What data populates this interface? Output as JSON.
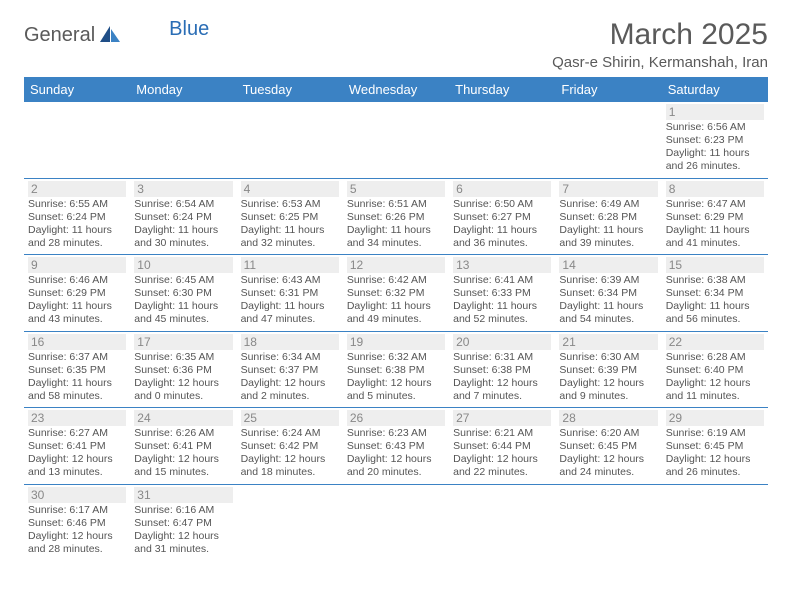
{
  "logo": {
    "text1": "General",
    "text2": "Blue"
  },
  "title": "March 2025",
  "location": "Qasr-e Shirin, Kermanshah, Iran",
  "colors": {
    "header_bg": "#3b82c4",
    "header_text": "#ffffff",
    "border": "#3b82c4",
    "daynum_bg": "#eeeeee",
    "daynum_fg": "#888888",
    "body_text": "#555555",
    "title_fg": "#5a5a5a",
    "logo_gray": "#5a5a5a",
    "logo_blue": "#2a6db5"
  },
  "weekdays": [
    "Sunday",
    "Monday",
    "Tuesday",
    "Wednesday",
    "Thursday",
    "Friday",
    "Saturday"
  ],
  "first_weekday_index": 6,
  "days": [
    {
      "n": 1,
      "sr": "6:56 AM",
      "ss": "6:23 PM",
      "dl": "11 hours and 26 minutes."
    },
    {
      "n": 2,
      "sr": "6:55 AM",
      "ss": "6:24 PM",
      "dl": "11 hours and 28 minutes."
    },
    {
      "n": 3,
      "sr": "6:54 AM",
      "ss": "6:24 PM",
      "dl": "11 hours and 30 minutes."
    },
    {
      "n": 4,
      "sr": "6:53 AM",
      "ss": "6:25 PM",
      "dl": "11 hours and 32 minutes."
    },
    {
      "n": 5,
      "sr": "6:51 AM",
      "ss": "6:26 PM",
      "dl": "11 hours and 34 minutes."
    },
    {
      "n": 6,
      "sr": "6:50 AM",
      "ss": "6:27 PM",
      "dl": "11 hours and 36 minutes."
    },
    {
      "n": 7,
      "sr": "6:49 AM",
      "ss": "6:28 PM",
      "dl": "11 hours and 39 minutes."
    },
    {
      "n": 8,
      "sr": "6:47 AM",
      "ss": "6:29 PM",
      "dl": "11 hours and 41 minutes."
    },
    {
      "n": 9,
      "sr": "6:46 AM",
      "ss": "6:29 PM",
      "dl": "11 hours and 43 minutes."
    },
    {
      "n": 10,
      "sr": "6:45 AM",
      "ss": "6:30 PM",
      "dl": "11 hours and 45 minutes."
    },
    {
      "n": 11,
      "sr": "6:43 AM",
      "ss": "6:31 PM",
      "dl": "11 hours and 47 minutes."
    },
    {
      "n": 12,
      "sr": "6:42 AM",
      "ss": "6:32 PM",
      "dl": "11 hours and 49 minutes."
    },
    {
      "n": 13,
      "sr": "6:41 AM",
      "ss": "6:33 PM",
      "dl": "11 hours and 52 minutes."
    },
    {
      "n": 14,
      "sr": "6:39 AM",
      "ss": "6:34 PM",
      "dl": "11 hours and 54 minutes."
    },
    {
      "n": 15,
      "sr": "6:38 AM",
      "ss": "6:34 PM",
      "dl": "11 hours and 56 minutes."
    },
    {
      "n": 16,
      "sr": "6:37 AM",
      "ss": "6:35 PM",
      "dl": "11 hours and 58 minutes."
    },
    {
      "n": 17,
      "sr": "6:35 AM",
      "ss": "6:36 PM",
      "dl": "12 hours and 0 minutes."
    },
    {
      "n": 18,
      "sr": "6:34 AM",
      "ss": "6:37 PM",
      "dl": "12 hours and 2 minutes."
    },
    {
      "n": 19,
      "sr": "6:32 AM",
      "ss": "6:38 PM",
      "dl": "12 hours and 5 minutes."
    },
    {
      "n": 20,
      "sr": "6:31 AM",
      "ss": "6:38 PM",
      "dl": "12 hours and 7 minutes."
    },
    {
      "n": 21,
      "sr": "6:30 AM",
      "ss": "6:39 PM",
      "dl": "12 hours and 9 minutes."
    },
    {
      "n": 22,
      "sr": "6:28 AM",
      "ss": "6:40 PM",
      "dl": "12 hours and 11 minutes."
    },
    {
      "n": 23,
      "sr": "6:27 AM",
      "ss": "6:41 PM",
      "dl": "12 hours and 13 minutes."
    },
    {
      "n": 24,
      "sr": "6:26 AM",
      "ss": "6:41 PM",
      "dl": "12 hours and 15 minutes."
    },
    {
      "n": 25,
      "sr": "6:24 AM",
      "ss": "6:42 PM",
      "dl": "12 hours and 18 minutes."
    },
    {
      "n": 26,
      "sr": "6:23 AM",
      "ss": "6:43 PM",
      "dl": "12 hours and 20 minutes."
    },
    {
      "n": 27,
      "sr": "6:21 AM",
      "ss": "6:44 PM",
      "dl": "12 hours and 22 minutes."
    },
    {
      "n": 28,
      "sr": "6:20 AM",
      "ss": "6:45 PM",
      "dl": "12 hours and 24 minutes."
    },
    {
      "n": 29,
      "sr": "6:19 AM",
      "ss": "6:45 PM",
      "dl": "12 hours and 26 minutes."
    },
    {
      "n": 30,
      "sr": "6:17 AM",
      "ss": "6:46 PM",
      "dl": "12 hours and 28 minutes."
    },
    {
      "n": 31,
      "sr": "6:16 AM",
      "ss": "6:47 PM",
      "dl": "12 hours and 31 minutes."
    }
  ],
  "labels": {
    "sunrise": "Sunrise:",
    "sunset": "Sunset:",
    "daylight": "Daylight:"
  }
}
